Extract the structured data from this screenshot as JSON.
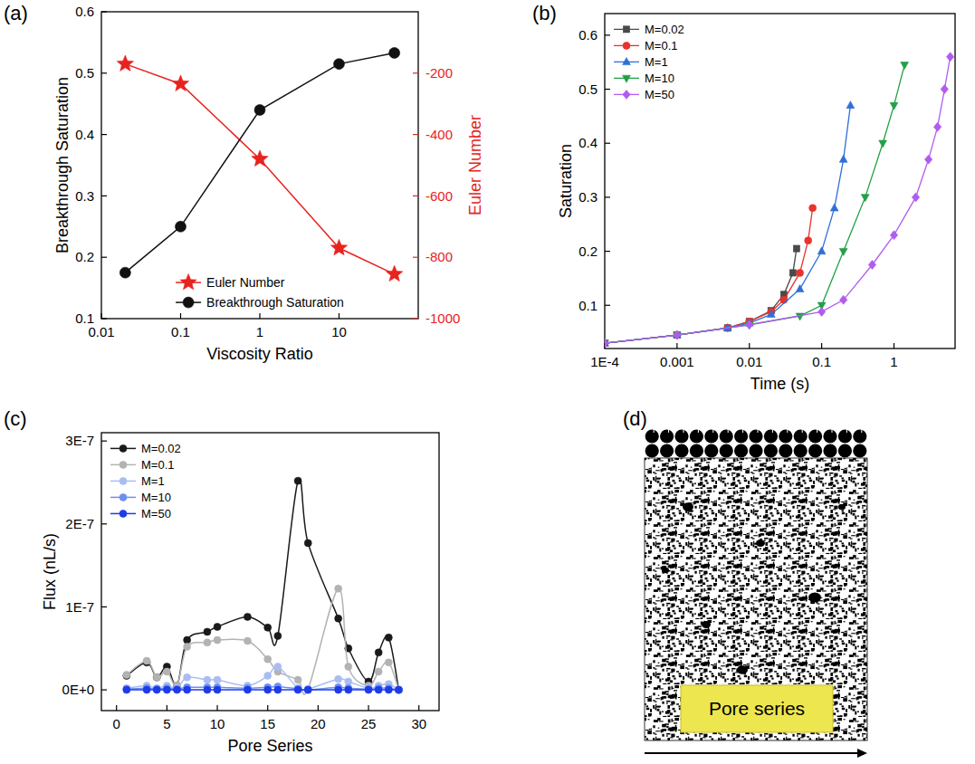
{
  "chart_data": [
    {
      "type": "line",
      "title": "(a)",
      "x_label": "Viscosity Ratio",
      "y_label": "Breakthrough Saturation",
      "y2_label": "Euler Number",
      "log": "x",
      "grid": false,
      "legend": "bottom",
      "x": [
        0.02,
        0.1,
        1,
        10,
        50
      ],
      "xlim": [
        0.01,
        100
      ],
      "xticks": [
        0.01,
        0.1,
        1,
        10
      ],
      "ylim": [
        0.1,
        0.6
      ],
      "yticks": [
        0.1,
        0.2,
        0.3,
        0.4,
        0.5,
        0.6
      ],
      "y2lim": [
        -1000,
        0
      ],
      "y2ticks": [
        -1000,
        -800,
        -600,
        -400,
        -200
      ],
      "series": [
        {
          "name": "Euler Number",
          "color": "#e8221e",
          "marker": "star",
          "line_style": "solid",
          "axis": "y2",
          "values": [
            -170,
            -235,
            -480,
            -770,
            -855
          ]
        },
        {
          "name": "Breakthrough Saturation",
          "color": "#111111",
          "marker": "circle",
          "line_style": "solid",
          "values": [
            0.175,
            0.25,
            0.44,
            0.515,
            0.533
          ]
        }
      ]
    },
    {
      "type": "line",
      "title": "(b)",
      "x_label": "Time (s)",
      "y_label": "Saturation",
      "log": "x",
      "grid": false,
      "legend": "top-left",
      "xlim": [
        0.0001,
        7
      ],
      "xticks": [
        {
          "value": 0.0001,
          "label": "1E-4"
        },
        0.001,
        0.01,
        0.1,
        1
      ],
      "ylim": [
        0.02,
        0.64
      ],
      "yticks": [
        0.1,
        0.2,
        0.3,
        0.4,
        0.5,
        0.6
      ],
      "series": [
        {
          "name": "M=0.02",
          "color": "#4a4a4a",
          "marker": "square",
          "line_style": "solid",
          "x": [
            0.0001,
            0.001,
            0.005,
            0.01,
            0.02,
            0.03,
            0.04,
            0.045
          ],
          "values": [
            0.03,
            0.045,
            0.058,
            0.07,
            0.09,
            0.12,
            0.16,
            0.205
          ]
        },
        {
          "name": "M=0.1",
          "color": "#e8332c",
          "marker": "circle",
          "line_style": "solid",
          "x": [
            0.0001,
            0.001,
            0.005,
            0.01,
            0.02,
            0.03,
            0.05,
            0.065,
            0.075
          ],
          "values": [
            0.03,
            0.045,
            0.058,
            0.07,
            0.088,
            0.11,
            0.16,
            0.22,
            0.28
          ]
        },
        {
          "name": "M=1",
          "color": "#2f6fd8",
          "marker": "triangle",
          "line_style": "solid",
          "x": [
            0.0001,
            0.001,
            0.005,
            0.01,
            0.02,
            0.05,
            0.1,
            0.15,
            0.2,
            0.25
          ],
          "values": [
            0.03,
            0.045,
            0.058,
            0.067,
            0.083,
            0.13,
            0.2,
            0.28,
            0.37,
            0.47
          ]
        },
        {
          "name": "M=10",
          "color": "#21a045",
          "marker": "triangle-down",
          "line_style": "solid",
          "x": [
            0.0001,
            0.001,
            0.01,
            0.05,
            0.1,
            0.2,
            0.4,
            0.7,
            1,
            1.4
          ],
          "values": [
            0.03,
            0.045,
            0.064,
            0.08,
            0.1,
            0.2,
            0.3,
            0.4,
            0.47,
            0.545
          ]
        },
        {
          "name": "M=50",
          "color": "#b05cf0",
          "marker": "diamond",
          "line_style": "solid",
          "x": [
            0.0001,
            0.001,
            0.01,
            0.1,
            0.2,
            0.5,
            1,
            2,
            3,
            4,
            5,
            6
          ],
          "values": [
            0.03,
            0.045,
            0.064,
            0.088,
            0.11,
            0.175,
            0.23,
            0.3,
            0.37,
            0.43,
            0.5,
            0.56
          ]
        }
      ]
    },
    {
      "type": "line",
      "title": "(c)",
      "x_label": "Pore Series",
      "y_label": "Flux (nL/s)",
      "grid": false,
      "legend": "top-left",
      "line_style": "spline",
      "x": [
        1,
        3,
        4,
        5,
        6,
        7,
        9,
        10,
        13,
        15,
        16,
        18,
        19,
        22,
        23,
        25,
        26,
        27,
        28
      ],
      "xlim": [
        -1.5,
        32
      ],
      "xticks": [
        0,
        5,
        10,
        15,
        20,
        25,
        30
      ],
      "ylim": [
        -2.5e-08,
        3.1e-07
      ],
      "yticks": [
        {
          "value": 0,
          "label": "0E+0"
        },
        {
          "value": 1e-07,
          "label": "1E-7"
        },
        {
          "value": 2e-07,
          "label": "2E-7"
        },
        {
          "value": 3e-07,
          "label": "3E-7"
        }
      ],
      "series": [
        {
          "name": "M=0.02",
          "color": "#1a1a1a",
          "marker": "circle",
          "values": [
            1.7e-08,
            3.3e-08,
            1.5e-08,
            2.8e-08,
            5e-09,
            6e-08,
            7e-08,
            7.6e-08,
            8.8e-08,
            7.5e-08,
            6.5e-08,
            2.52e-07,
            1.77e-07,
            8.6e-08,
            5e-08,
            1e-08,
            4.5e-08,
            6.3e-08,
            0
          ]
        },
        {
          "name": "M=0.1",
          "color": "#b3b3b3",
          "marker": "circle",
          "values": [
            1.8e-08,
            3.5e-08,
            1.5e-08,
            2.2e-08,
            5e-09,
            5.2e-08,
            5.7e-08,
            6e-08,
            5.9e-08,
            3.7e-08,
            2.2e-08,
            1.2e-08,
            1e-09,
            1.22e-07,
            2.8e-08,
            5e-09,
            2.2e-08,
            3.3e-08,
            0
          ]
        },
        {
          "name": "M=1",
          "color": "#aabdf2",
          "marker": "circle",
          "values": [
            2e-09,
            5e-09,
            2e-09,
            5e-09,
            2e-09,
            1.5e-08,
            1.2e-08,
            1.2e-08,
            5e-09,
            1.7e-08,
            2.8e-08,
            2e-09,
            1e-09,
            1.3e-08,
            1e-08,
            2e-09,
            5e-09,
            7e-09,
            0
          ]
        },
        {
          "name": "M=10",
          "color": "#6d8ff0",
          "marker": "circle",
          "values": [
            1e-09,
            2e-09,
            1e-09,
            2e-09,
            1e-09,
            3e-09,
            3e-09,
            3e-09,
            2e-09,
            3e-09,
            4e-09,
            1e-09,
            0,
            3e-09,
            2e-09,
            1e-09,
            2e-09,
            2e-09,
            0
          ]
        },
        {
          "name": "M=50",
          "color": "#1d3be8",
          "marker": "circle",
          "values": [
            0,
            0,
            0,
            0,
            0,
            0,
            0,
            0,
            0,
            0,
            0,
            0,
            0,
            0,
            0,
            0,
            0,
            0,
            0
          ]
        }
      ]
    }
  ],
  "diagram": {
    "title": "(d)",
    "label": "Pore series"
  }
}
